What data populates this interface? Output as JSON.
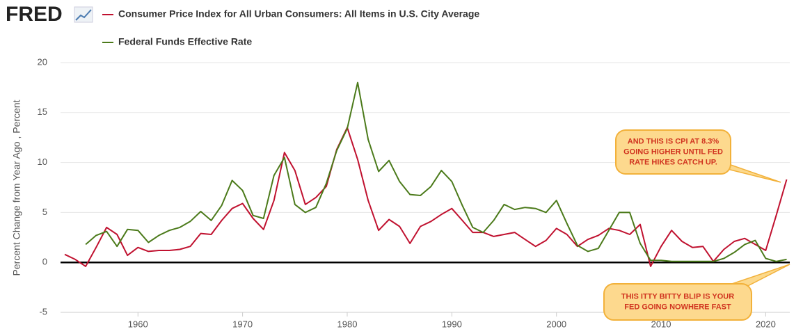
{
  "logo": "FRED",
  "chart_data": {
    "type": "line",
    "y_label": "Percent Change from Year Ago , Percent",
    "x": [
      1953,
      1954,
      1955,
      1956,
      1957,
      1958,
      1959,
      1960,
      1961,
      1962,
      1963,
      1964,
      1965,
      1966,
      1967,
      1968,
      1969,
      1970,
      1971,
      1972,
      1973,
      1974,
      1975,
      1976,
      1977,
      1978,
      1979,
      1980,
      1981,
      1982,
      1983,
      1984,
      1985,
      1986,
      1987,
      1988,
      1989,
      1990,
      1991,
      1992,
      1993,
      1994,
      1995,
      1996,
      1997,
      1998,
      1999,
      2000,
      2001,
      2002,
      2003,
      2004,
      2005,
      2006,
      2007,
      2008,
      2009,
      2010,
      2011,
      2012,
      2013,
      2014,
      2015,
      2016,
      2017,
      2018,
      2019,
      2020,
      2021,
      2022
    ],
    "series": [
      {
        "name": "Consumer Price Index for All Urban Consumers: All Items in U.S. City Average",
        "color": "#c0112f",
        "values": [
          0.8,
          0.3,
          -0.4,
          1.5,
          3.5,
          2.8,
          0.7,
          1.5,
          1.1,
          1.2,
          1.2,
          1.3,
          1.6,
          2.9,
          2.8,
          4.2,
          5.4,
          5.9,
          4.4,
          3.3,
          6.2,
          11.0,
          9.2,
          5.8,
          6.5,
          7.6,
          11.3,
          13.5,
          10.3,
          6.2,
          3.2,
          4.3,
          3.6,
          1.9,
          3.6,
          4.1,
          4.8,
          5.4,
          4.2,
          3.0,
          3.0,
          2.6,
          2.8,
          3.0,
          2.3,
          1.6,
          2.2,
          3.4,
          2.8,
          1.6,
          2.3,
          2.7,
          3.4,
          3.2,
          2.8,
          3.8,
          -0.4,
          1.6,
          3.2,
          2.1,
          1.5,
          1.6,
          0.1,
          1.3,
          2.1,
          2.4,
          1.8,
          1.2,
          4.7,
          8.3
        ]
      },
      {
        "name": "Federal Funds Effective Rate",
        "color": "#4b7a1a",
        "values": [
          null,
          null,
          1.8,
          2.7,
          3.1,
          1.6,
          3.3,
          3.2,
          2.0,
          2.7,
          3.2,
          3.5,
          4.1,
          5.1,
          4.2,
          5.7,
          8.2,
          7.2,
          4.7,
          4.4,
          8.7,
          10.5,
          5.8,
          5.0,
          5.5,
          7.9,
          11.2,
          13.4,
          18.0,
          12.3,
          9.1,
          10.2,
          8.1,
          6.8,
          6.7,
          7.6,
          9.2,
          8.1,
          5.7,
          3.5,
          3.0,
          4.2,
          5.8,
          5.3,
          5.5,
          5.4,
          5.0,
          6.2,
          3.9,
          1.7,
          1.1,
          1.4,
          3.2,
          5.0,
          5.0,
          1.9,
          0.2,
          0.2,
          0.1,
          0.1,
          0.1,
          0.1,
          0.1,
          0.4,
          1.0,
          1.8,
          2.2,
          0.4,
          0.1,
          0.3
        ]
      }
    ],
    "xlim": [
      1952.6,
      2022.3
    ],
    "xticks": [
      1960,
      1970,
      1980,
      1990,
      2000,
      2010,
      2020
    ],
    "ylim": [
      -5,
      20
    ],
    "yticks": [
      -5,
      0,
      5,
      10,
      15,
      20
    ],
    "grid": true,
    "annotations": [
      {
        "lines": [
          "AND THIS IS CPI AT 8.3%",
          "GOING HIGHER UNTIL FED",
          "RATE HIKES CATCH UP."
        ]
      },
      {
        "lines": [
          "THIS ITTY BITTY BLIP IS YOUR",
          "FED GOING NOWHERE FAST"
        ]
      }
    ]
  }
}
